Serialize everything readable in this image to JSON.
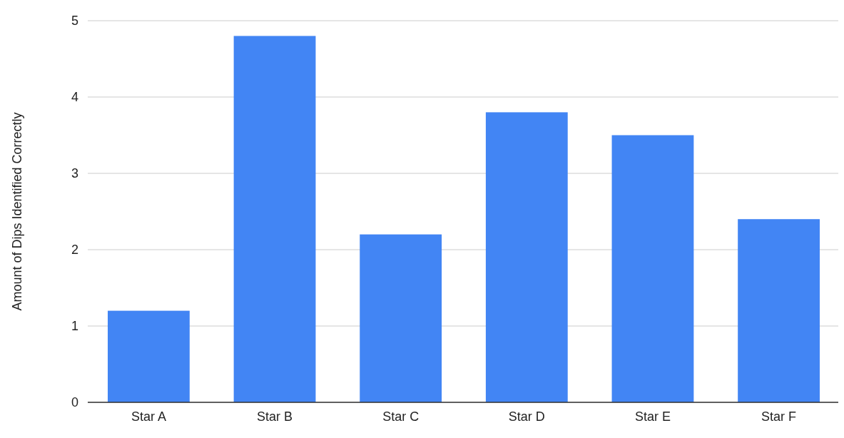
{
  "chart_data": {
    "type": "bar",
    "ylabel": "Amount of Dips Identified Correctly",
    "categories": [
      "Star A",
      "Star B",
      "Star C",
      "Star D",
      "Star E",
      "Star F"
    ],
    "values": [
      1.2,
      4.8,
      2.2,
      3.8,
      3.5,
      2.4
    ],
    "color": "#4285f4",
    "ylim": [
      0,
      5
    ],
    "yticks": [
      0,
      1,
      2,
      3,
      4,
      5
    ],
    "grid": "y"
  }
}
